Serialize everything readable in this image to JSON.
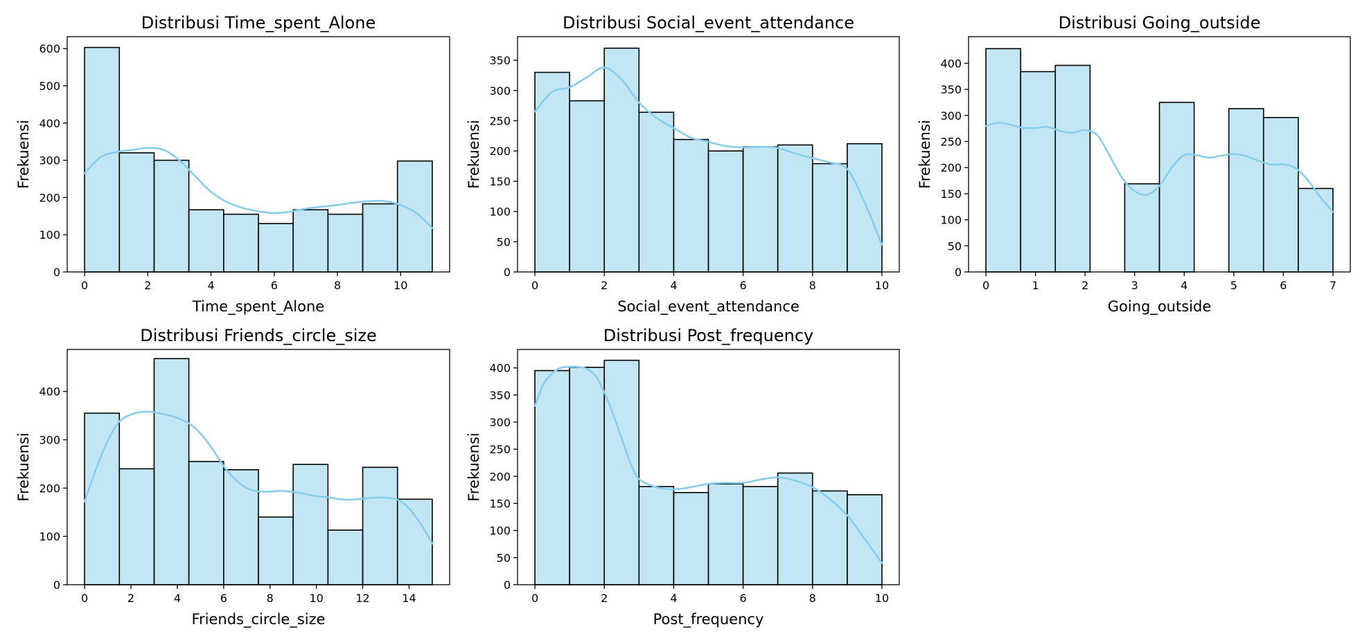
{
  "figure": {
    "background": "#ffffff",
    "bar_fill": "#87ceeb",
    "bar_fill_opacity": 0.5,
    "bar_edge": "#000000",
    "kde_color": "#87ceeb"
  },
  "chart_data": [
    {
      "type": "bar",
      "title": "Distribusi Time_spent_Alone",
      "xlabel": "Time_spent_Alone",
      "ylabel": "Frekuensi",
      "xlim": [
        -0.55,
        11.55
      ],
      "ylim": [
        0,
        632
      ],
      "xticks": [
        0,
        2,
        4,
        6,
        8,
        10
      ],
      "yticks": [
        0,
        100,
        200,
        300,
        400,
        500,
        600
      ],
      "bin_edges": [
        0,
        1.1,
        2.2,
        3.3,
        4.4,
        5.5,
        6.6,
        7.7,
        8.8,
        9.9,
        11
      ],
      "values": [
        603,
        320,
        300,
        167,
        155,
        130,
        167,
        155,
        183,
        298
      ],
      "kde": {
        "x": [
          0,
          0.5,
          1,
          1.5,
          2,
          2.5,
          3,
          3.5,
          4,
          4.5,
          5,
          5.5,
          6,
          6.5,
          7,
          7.5,
          8,
          8.5,
          9,
          9.5,
          10,
          10.5,
          11
        ],
        "y": [
          265,
          308,
          322,
          328,
          333,
          328,
          300,
          257,
          215,
          188,
          172,
          163,
          158,
          162,
          170,
          175,
          180,
          186,
          190,
          190,
          180,
          158,
          118
        ]
      }
    },
    {
      "type": "bar",
      "title": "Distribusi Social_event_attendance",
      "xlabel": "Social_event_attendance",
      "ylabel": "Frekuensi",
      "xlim": [
        -0.5,
        10.5
      ],
      "ylim": [
        0,
        389
      ],
      "xticks": [
        0,
        2,
        4,
        6,
        8,
        10
      ],
      "yticks": [
        0,
        50,
        100,
        150,
        200,
        250,
        300,
        350
      ],
      "bin_edges": [
        0,
        1,
        2,
        3,
        4,
        5,
        6,
        7,
        8,
        9,
        10
      ],
      "values": [
        330,
        283,
        370,
        264,
        219,
        200,
        207,
        210,
        179,
        212
      ],
      "kde": {
        "x": [
          0,
          0.5,
          1,
          1.5,
          2,
          2.5,
          3,
          3.5,
          4,
          4.5,
          5,
          5.5,
          6,
          6.5,
          7,
          7.5,
          8,
          8.5,
          9,
          9.5,
          10
        ],
        "y": [
          265,
          298,
          305,
          322,
          338,
          318,
          280,
          255,
          238,
          222,
          215,
          208,
          206,
          207,
          205,
          196,
          188,
          181,
          170,
          115,
          45
        ]
      }
    },
    {
      "type": "bar",
      "title": "Distribusi Going_outside",
      "xlabel": "Going_outside",
      "ylabel": "Frekuensi",
      "xlim": [
        -0.35,
        7.35
      ],
      "ylim": [
        0,
        451
      ],
      "xticks": [
        0,
        1,
        2,
        3,
        4,
        5,
        6,
        7
      ],
      "yticks": [
        0,
        50,
        100,
        150,
        200,
        250,
        300,
        350,
        400
      ],
      "bin_edges": [
        0,
        0.7,
        1.4,
        2.1,
        2.8,
        3.5,
        4.2,
        4.9,
        5.6,
        6.3,
        7
      ],
      "values": [
        428,
        384,
        396,
        0,
        169,
        325,
        0,
        313,
        296,
        160
      ],
      "kde": {
        "x": [
          0,
          0.25,
          0.5,
          0.75,
          1,
          1.25,
          1.5,
          1.75,
          2,
          2.25,
          2.5,
          2.75,
          3,
          3.25,
          3.5,
          3.75,
          4,
          4.25,
          4.5,
          4.75,
          5,
          5.25,
          5.5,
          5.75,
          6,
          6.25,
          6.5,
          6.75,
          7
        ],
        "y": [
          280,
          286,
          282,
          276,
          276,
          278,
          270,
          267,
          272,
          262,
          222,
          180,
          155,
          148,
          165,
          200,
          224,
          224,
          219,
          223,
          226,
          222,
          213,
          206,
          206,
          199,
          175,
          143,
          115
        ]
      }
    },
    {
      "type": "bar",
      "title": "Distribusi Friends_circle_size",
      "xlabel": "Friends_circle_size",
      "ylabel": "Frekuensi",
      "xlim": [
        -0.75,
        15.75
      ],
      "ylim": [
        0,
        487
      ],
      "xticks": [
        0,
        2,
        4,
        6,
        8,
        10,
        12,
        14
      ],
      "yticks": [
        0,
        100,
        200,
        300,
        400
      ],
      "bin_edges": [
        0,
        1.5,
        3,
        4.5,
        6,
        7.5,
        9,
        10.5,
        12,
        13.5,
        15
      ],
      "values": [
        355,
        240,
        468,
        255,
        238,
        140,
        249,
        113,
        243,
        177
      ],
      "kde": {
        "x": [
          0,
          0.5,
          1,
          1.5,
          2,
          2.5,
          3,
          3.5,
          4,
          4.5,
          5,
          5.5,
          6,
          6.5,
          7,
          7.5,
          8,
          8.5,
          9,
          9.5,
          10,
          10.5,
          11,
          11.5,
          12,
          12.5,
          13,
          13.5,
          14,
          14.5,
          15
        ],
        "y": [
          172,
          240,
          298,
          338,
          352,
          358,
          357,
          352,
          345,
          334,
          313,
          282,
          246,
          218,
          200,
          193,
          193,
          194,
          192,
          188,
          183,
          181,
          177,
          176,
          178,
          180,
          180,
          176,
          158,
          126,
          85
        ]
      }
    },
    {
      "type": "bar",
      "title": "Distribusi Post_frequency",
      "xlabel": "Post_frequency",
      "ylabel": "Frekuensi",
      "xlim": [
        -0.5,
        10.5
      ],
      "ylim": [
        0,
        434
      ],
      "xticks": [
        0,
        2,
        4,
        6,
        8,
        10
      ],
      "yticks": [
        0,
        50,
        100,
        150,
        200,
        250,
        300,
        350,
        400
      ],
      "bin_edges": [
        0,
        1,
        2,
        3,
        4,
        5,
        6,
        7,
        8,
        9,
        10
      ],
      "values": [
        395,
        401,
        414,
        181,
        170,
        186,
        181,
        206,
        173,
        166
      ],
      "kde": {
        "x": [
          0,
          0.25,
          0.5,
          0.75,
          1,
          1.25,
          1.5,
          1.75,
          2,
          2.25,
          2.5,
          2.75,
          3,
          3.5,
          4,
          4.5,
          5,
          5.5,
          6,
          6.5,
          7,
          7.5,
          8,
          8.5,
          9,
          9.5,
          10
        ],
        "y": [
          330,
          370,
          390,
          400,
          402,
          402,
          398,
          385,
          355,
          315,
          270,
          225,
          195,
          180,
          176,
          180,
          186,
          188,
          188,
          194,
          198,
          192,
          180,
          158,
          128,
          85,
          40
        ]
      }
    }
  ]
}
